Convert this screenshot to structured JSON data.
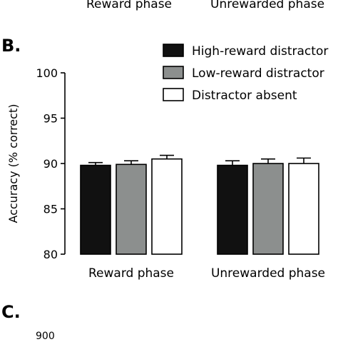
{
  "top_crop": {
    "labels": [
      "Reward phase",
      "Unrewarded phase"
    ]
  },
  "panels": {
    "b_label": "B.",
    "c_label": "C.",
    "c_cut_tick": "900"
  },
  "chart_data": {
    "type": "bar",
    "categories": [
      "Reward phase",
      "Unrewarded phase"
    ],
    "ylabel": "Accuracy (% correct)",
    "xlabel": "",
    "ylim": [
      80,
      100
    ],
    "yticks": [
      80,
      85,
      90,
      95,
      100
    ],
    "grid": false,
    "legend_position": "top-right",
    "series": [
      {
        "name": "High-reward distractor",
        "color": "#111111",
        "values": [
          89.8,
          89.8
        ],
        "errors": [
          0.3,
          0.5
        ]
      },
      {
        "name": "Low-reward distractor",
        "color": "#8c8f8e",
        "values": [
          89.9,
          90.0
        ],
        "errors": [
          0.4,
          0.5
        ]
      },
      {
        "name": "Distractor absent",
        "color": "#ffffff",
        "values": [
          90.5,
          90.0
        ],
        "errors": [
          0.4,
          0.6
        ]
      }
    ]
  }
}
